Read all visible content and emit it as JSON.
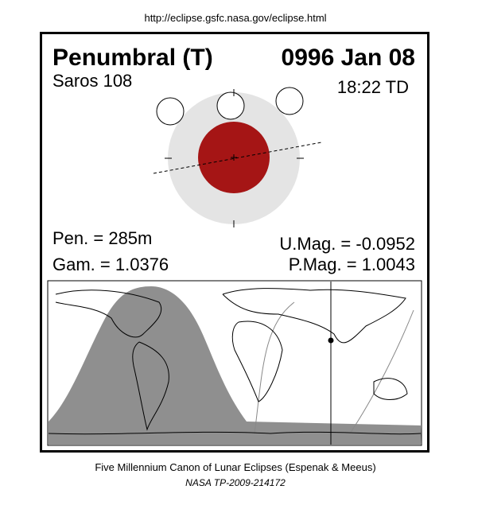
{
  "header": {
    "url": "http://eclipse.gsfc.nasa.gov/eclipse.html"
  },
  "panel": {
    "title": "Penumbral (T)",
    "date": "0996 Jan 08",
    "saros": "Saros 108",
    "time": "18:22 TD",
    "pen": "Pen. = 285m",
    "gam": "Gam. = 1.0376",
    "umag": "U.Mag. = -0.0952",
    "pmag": "P.Mag. = 1.0043"
  },
  "footer": {
    "line1": "Five Millennium Canon of Lunar Eclipses (Espenak & Meeus)",
    "line2": "NASA TP-2009-214172"
  }
}
